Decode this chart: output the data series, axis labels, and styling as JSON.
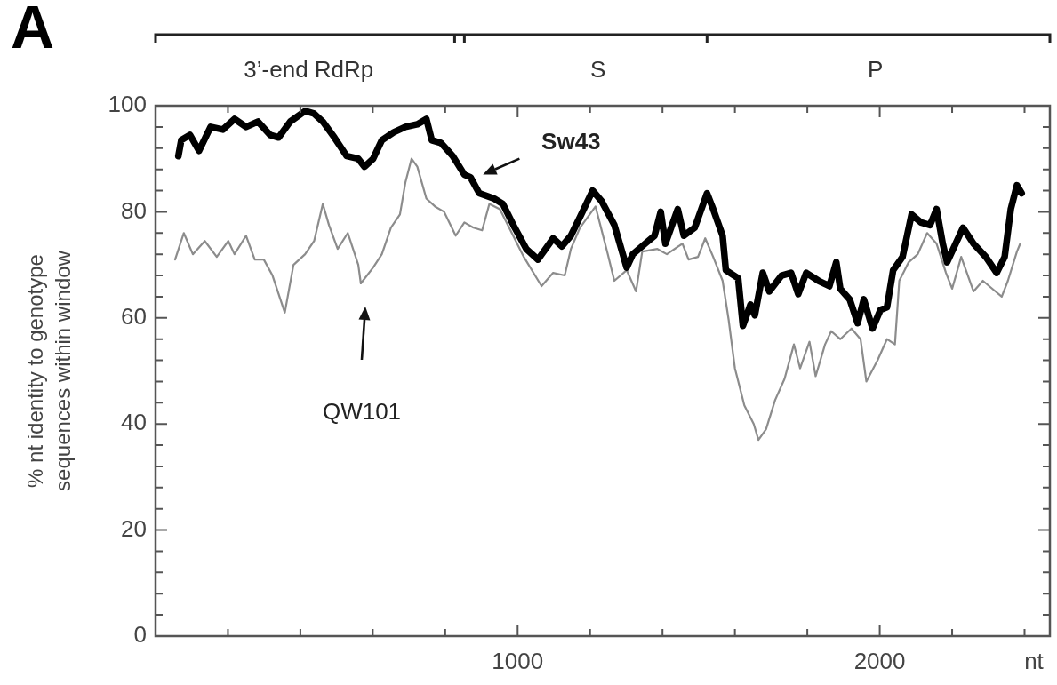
{
  "chart_data": {
    "type": "line",
    "xlabel": "nt",
    "ylabel": "% nt identity to genotype sequences within window",
    "annotations": [
      "A",
      "3’-end RdRp",
      "S",
      "P",
      "QW101"
    ],
    "xlim": [
      0,
      2470
    ],
    "ylim": [
      0,
      100
    ],
    "xticks": [
      {
        "value": 200,
        "label": null
      },
      {
        "value": 400,
        "label": null
      },
      {
        "value": 600,
        "label": null
      },
      {
        "value": 800,
        "label": null
      },
      1000,
      {
        "value": 1200,
        "label": null
      },
      {
        "value": 1400,
        "label": null
      },
      {
        "value": 1600,
        "label": null
      },
      {
        "value": 1800,
        "label": null
      },
      2000,
      {
        "value": 2200,
        "label": null
      },
      {
        "value": 2400,
        "label": null
      }
    ],
    "yticks": [
      0,
      {
        "value": 4,
        "label": null
      },
      {
        "value": 8,
        "label": null
      },
      {
        "value": 12,
        "label": null
      },
      {
        "value": 16,
        "label": null
      },
      20,
      {
        "value": 24,
        "label": null
      },
      {
        "value": 28,
        "label": null
      },
      {
        "value": 32,
        "label": null
      },
      {
        "value": 36,
        "label": null
      },
      40,
      {
        "value": 44,
        "label": null
      },
      {
        "value": 48,
        "label": null
      },
      {
        "value": 52,
        "label": null
      },
      {
        "value": 56,
        "label": null
      },
      60,
      {
        "value": 64,
        "label": null
      },
      {
        "value": 68,
        "label": null
      },
      {
        "value": 72,
        "label": null
      },
      {
        "value": 76,
        "label": null
      },
      80,
      {
        "value": 84,
        "label": null
      },
      {
        "value": 88,
        "label": null
      },
      {
        "value": 92,
        "label": null
      },
      {
        "value": 96,
        "label": null
      },
      100
    ],
    "series": [
      {
        "name": "Sw43",
        "color": "#000000",
        "x": [
          63,
          71,
          95,
          120,
          152,
          186,
          218,
          250,
          283,
          316,
          340,
          372,
          413,
          438,
          462,
          494,
          528,
          560,
          577,
          601,
          625,
          658,
          690,
          723,
          748,
          763,
          788,
          821,
          853,
          870,
          894,
          935,
          959,
          992,
          1024,
          1056,
          1098,
          1122,
          1147,
          1172,
          1207,
          1232,
          1267,
          1301,
          1318,
          1352,
          1378,
          1395,
          1408,
          1442,
          1459,
          1489,
          1523,
          1540,
          1566,
          1575,
          1609,
          1622,
          1643,
          1655,
          1677,
          1695,
          1729,
          1755,
          1775,
          1797,
          1831,
          1861,
          1880,
          1891,
          1917,
          1939,
          1956,
          1980,
          2002,
          2020,
          2037,
          2063,
          2088,
          2114,
          2139,
          2157,
          2174,
          2186,
          2230,
          2259,
          2293,
          2323,
          2345,
          2362,
          2379,
          2392
        ],
        "values": [
          90.5,
          93.5,
          94.5,
          91.5,
          96,
          95.5,
          97.5,
          96,
          97,
          94.5,
          94,
          97,
          99,
          98.5,
          97,
          94,
          90.5,
          90,
          88.5,
          90,
          93.5,
          95,
          96,
          96.5,
          97.5,
          93.5,
          93,
          90.5,
          87,
          86.5,
          83.5,
          82.5,
          81.5,
          77,
          73,
          71,
          75,
          73.5,
          75.5,
          79,
          84,
          82,
          77.5,
          69.5,
          72,
          74,
          75.5,
          80,
          74,
          80.5,
          75.5,
          77,
          83.5,
          80.5,
          75.5,
          69,
          67.5,
          58.5,
          62.5,
          60.5,
          68.5,
          65,
          68,
          68.5,
          64.5,
          68.5,
          67,
          66,
          70.5,
          65.5,
          63.5,
          59,
          63.5,
          58,
          61.5,
          62,
          69,
          71.5,
          79.5,
          78,
          77.5,
          80.5,
          74,
          70.5,
          77,
          74,
          71.5,
          68.5,
          71.5,
          80.5,
          85,
          83.5
        ]
      },
      {
        "color": "#8c8c8c",
        "x": [
          54,
          78,
          103,
          136,
          169,
          201,
          218,
          250,
          274,
          299,
          323,
          357,
          381,
          413,
          438,
          462,
          479,
          503,
          531,
          560,
          567,
          601,
          625,
          650,
          675,
          690,
          707,
          723,
          748,
          772,
          797,
          829,
          853,
          878,
          902,
          922,
          951,
          1017,
          1066,
          1098,
          1130,
          1147,
          1172,
          1215,
          1249,
          1267,
          1301,
          1327,
          1344,
          1386,
          1412,
          1455,
          1472,
          1498,
          1518,
          1540,
          1566,
          1583,
          1600,
          1626,
          1652,
          1665,
          1686,
          1711,
          1737,
          1763,
          1780,
          1806,
          1823,
          1849,
          1866,
          1891,
          1922,
          1947,
          1963,
          1994,
          2020,
          2042,
          2054,
          2080,
          2105,
          2131,
          2157,
          2183,
          2200,
          2225,
          2259,
          2285,
          2311,
          2337,
          2354,
          2379,
          2388
        ],
        "values": [
          71,
          76,
          72,
          74.5,
          71.5,
          74.5,
          72,
          75.5,
          71,
          71,
          68,
          61,
          70,
          72,
          74.5,
          81.5,
          77.5,
          73,
          76,
          70,
          66.5,
          69.5,
          72,
          77,
          79.5,
          85.5,
          90,
          88.5,
          82.5,
          81,
          80,
          75.5,
          78,
          77,
          76.5,
          81.5,
          80.5,
          71.5,
          66,
          68.5,
          68,
          73,
          77,
          81,
          72,
          67,
          69,
          65,
          72.5,
          73,
          72,
          74,
          71,
          71.5,
          75,
          71.5,
          67,
          59.5,
          50.5,
          43.5,
          40,
          37,
          39,
          44.5,
          48.5,
          55,
          50.5,
          55.5,
          49,
          55,
          57.5,
          56,
          58,
          56,
          48,
          52,
          56,
          55,
          67,
          70.5,
          72,
          76,
          74,
          68.5,
          65.5,
          71.5,
          65,
          67,
          65.5,
          64,
          67,
          72.5,
          74
        ]
      }
    ]
  }
}
